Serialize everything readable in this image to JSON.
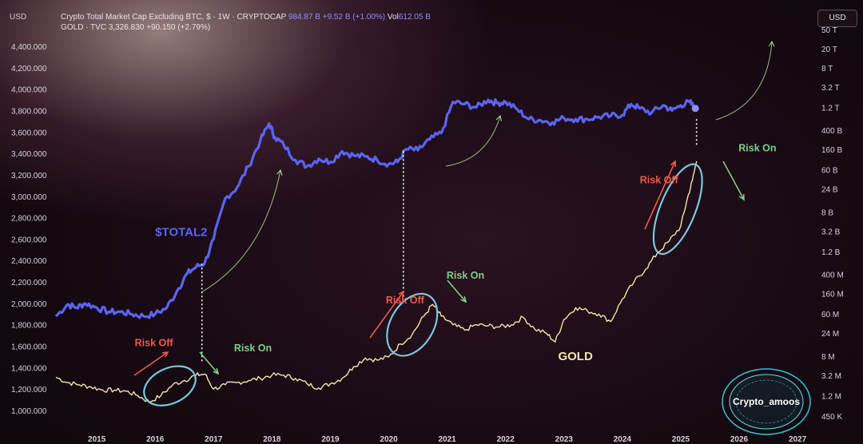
{
  "header": {
    "left_currency": "USD",
    "line1_label": "Crypto Total Market Cap Excluding BTC, $ · 1W · CRYPTOCAP",
    "line1_value": "984.87 B",
    "line1_change": "+9.52 B (+1.00%)",
    "line1_vol_label": "Vol",
    "line1_vol_value": "612.05 B",
    "line2_label": "GOLD · TVC",
    "line2_value": "3,326.830",
    "line2_change": "+90.150 (+2.79%)",
    "currency_button": "USD"
  },
  "watermark": "Crypto_amoos",
  "colors": {
    "total2": "#5b63f2",
    "gold": "#f3e6a8",
    "risk_off": "#ef5a4b",
    "risk_on": "#7fcf84",
    "ellipse": "#7cc7e0",
    "arrow": "#b8d8a0"
  },
  "chart_data": {
    "type": "line",
    "x_ticks": [
      "2015",
      "2016",
      "2017",
      "2018",
      "2019",
      "2020",
      "2021",
      "2022",
      "2023",
      "2024",
      "2025",
      "2026",
      "2027"
    ],
    "x_range": [
      2014.3,
      2027.3
    ],
    "left_axis": {
      "ticks": [
        1000000,
        1200000,
        1400000,
        1600000,
        1800000,
        2000000,
        2200000,
        2400000,
        2600000,
        2800000,
        3000000,
        3200000,
        3400000,
        3600000,
        3800000,
        4000000,
        4200000,
        4400000
      ],
      "tick_labels": [
        "1,000.000",
        "1,200.000",
        "1,400.000",
        "1,600.000",
        "1,800.000",
        "2,000.000",
        "2,200.000",
        "2,400.000",
        "2,600.000",
        "2,800.000",
        "3,000.000",
        "3,200.000",
        "3,400.000",
        "3,600.000",
        "3,800.000",
        "4,000.000",
        "4,200.000",
        "4,400.000"
      ],
      "range": [
        900000,
        4500000
      ]
    },
    "right_axis": {
      "scale": "log",
      "tick_labels": [
        "450 K",
        "1.2 M",
        "3.2 M",
        "8 M",
        "24 M",
        "60 M",
        "160 M",
        "400 M",
        "1.2 B",
        "3.2 B",
        "8 B",
        "24 B",
        "60 B",
        "160 B",
        "400 B",
        "1.2 T",
        "3.2 T",
        "8 T",
        "20 T",
        "50 T"
      ],
      "tick_values": [
        450000,
        1200000,
        3200000,
        8000000,
        24000000,
        60000000,
        160000000,
        400000000,
        1200000000,
        3200000000,
        8000000000,
        24000000000,
        60000000000,
        160000000000,
        400000000000,
        1200000000000,
        3200000000000,
        8000000000000,
        20000000000000,
        50000000000000
      ]
    },
    "series": [
      {
        "name": "$TOTAL2",
        "x": [
          2014.3,
          2014.5,
          2014.65,
          2014.8,
          2015.0,
          2015.2,
          2015.4,
          2015.6,
          2015.8,
          2016.0,
          2016.2,
          2016.4,
          2016.55,
          2016.7,
          2016.85,
          2017.0,
          2017.2,
          2017.4,
          2017.6,
          2017.8,
          2017.95,
          2018.05,
          2018.2,
          2018.4,
          2018.6,
          2018.8,
          2019.0,
          2019.2,
          2019.4,
          2019.6,
          2019.8,
          2020.0,
          2020.15,
          2020.3,
          2020.5,
          2020.7,
          2020.9,
          2021.1,
          2021.3,
          2021.5,
          2021.7,
          2021.85,
          2022.0,
          2022.2,
          2022.4,
          2022.6,
          2022.8,
          2023.0,
          2023.2,
          2023.4,
          2023.6,
          2023.8,
          2024.0,
          2024.15,
          2024.3,
          2024.5,
          2024.7,
          2024.85,
          2025.0,
          2025.15,
          2025.25
        ],
        "values": [
          1880000,
          1990000,
          1960000,
          2000000,
          1960000,
          1920000,
          1920000,
          1900000,
          1880000,
          1900000,
          1960000,
          2140000,
          2280000,
          2340000,
          2380000,
          2600000,
          2980000,
          3080000,
          3280000,
          3520000,
          3680000,
          3550000,
          3480000,
          3340000,
          3280000,
          3350000,
          3320000,
          3420000,
          3380000,
          3370000,
          3340000,
          3300000,
          3320000,
          3440000,
          3430000,
          3530000,
          3590000,
          3880000,
          3860000,
          3830000,
          3900000,
          3870000,
          3880000,
          3810000,
          3720000,
          3710000,
          3690000,
          3730000,
          3720000,
          3720000,
          3740000,
          3750000,
          3760000,
          3860000,
          3820000,
          3780000,
          3850000,
          3800000,
          3850000,
          3880000,
          3820000
        ]
      },
      {
        "name": "GOLD",
        "x": [
          2014.3,
          2014.5,
          2014.7,
          2014.9,
          2015.1,
          2015.3,
          2015.5,
          2015.7,
          2015.9,
          2016.1,
          2016.3,
          2016.5,
          2016.7,
          2016.85,
          2017.0,
          2017.2,
          2017.4,
          2017.6,
          2017.8,
          2018.0,
          2018.2,
          2018.4,
          2018.6,
          2018.8,
          2019.0,
          2019.2,
          2019.4,
          2019.6,
          2019.8,
          2020.0,
          2020.2,
          2020.4,
          2020.6,
          2020.75,
          2020.9,
          2021.1,
          2021.3,
          2021.5,
          2021.7,
          2021.9,
          2022.1,
          2022.3,
          2022.5,
          2022.7,
          2022.85,
          2023.0,
          2023.2,
          2023.4,
          2023.6,
          2023.8,
          2024.0,
          2024.2,
          2024.4,
          2024.6,
          2024.8,
          2025.0,
          2025.1,
          2025.2,
          2025.27
        ],
        "values": [
          1310000,
          1260000,
          1240000,
          1220000,
          1190000,
          1190000,
          1180000,
          1140000,
          1080000,
          1140000,
          1240000,
          1280000,
          1330000,
          1340000,
          1200000,
          1240000,
          1260000,
          1280000,
          1300000,
          1330000,
          1330000,
          1300000,
          1250000,
          1210000,
          1250000,
          1300000,
          1410000,
          1490000,
          1470000,
          1500000,
          1620000,
          1710000,
          1880000,
          1990000,
          1880000,
          1800000,
          1750000,
          1800000,
          1790000,
          1780000,
          1800000,
          1870000,
          1760000,
          1720000,
          1640000,
          1850000,
          1960000,
          1930000,
          1900000,
          1830000,
          2040000,
          2200000,
          2320000,
          2470000,
          2580000,
          2720000,
          2950000,
          3150000,
          3326830
        ]
      }
    ],
    "annotations": [
      {
        "text": "$TOTAL2",
        "x": 2016.0,
        "y": 2630000
      },
      {
        "text": "GOLD",
        "x": 2022.9,
        "y": 1470000
      },
      {
        "text": "Risk Off",
        "x": 2015.65,
        "y": 1600000
      },
      {
        "text": "Risk On",
        "x": 2017.35,
        "y": 1550000
      },
      {
        "text": "Risk Off",
        "x": 2019.95,
        "y": 2000000
      },
      {
        "text": "Risk On",
        "x": 2020.99,
        "y": 2230000
      },
      {
        "text": "Risk Off",
        "x": 2024.3,
        "y": 3120000
      },
      {
        "text": "Risk On",
        "x": 2025.99,
        "y": 3420000
      }
    ],
    "grid": false
  }
}
